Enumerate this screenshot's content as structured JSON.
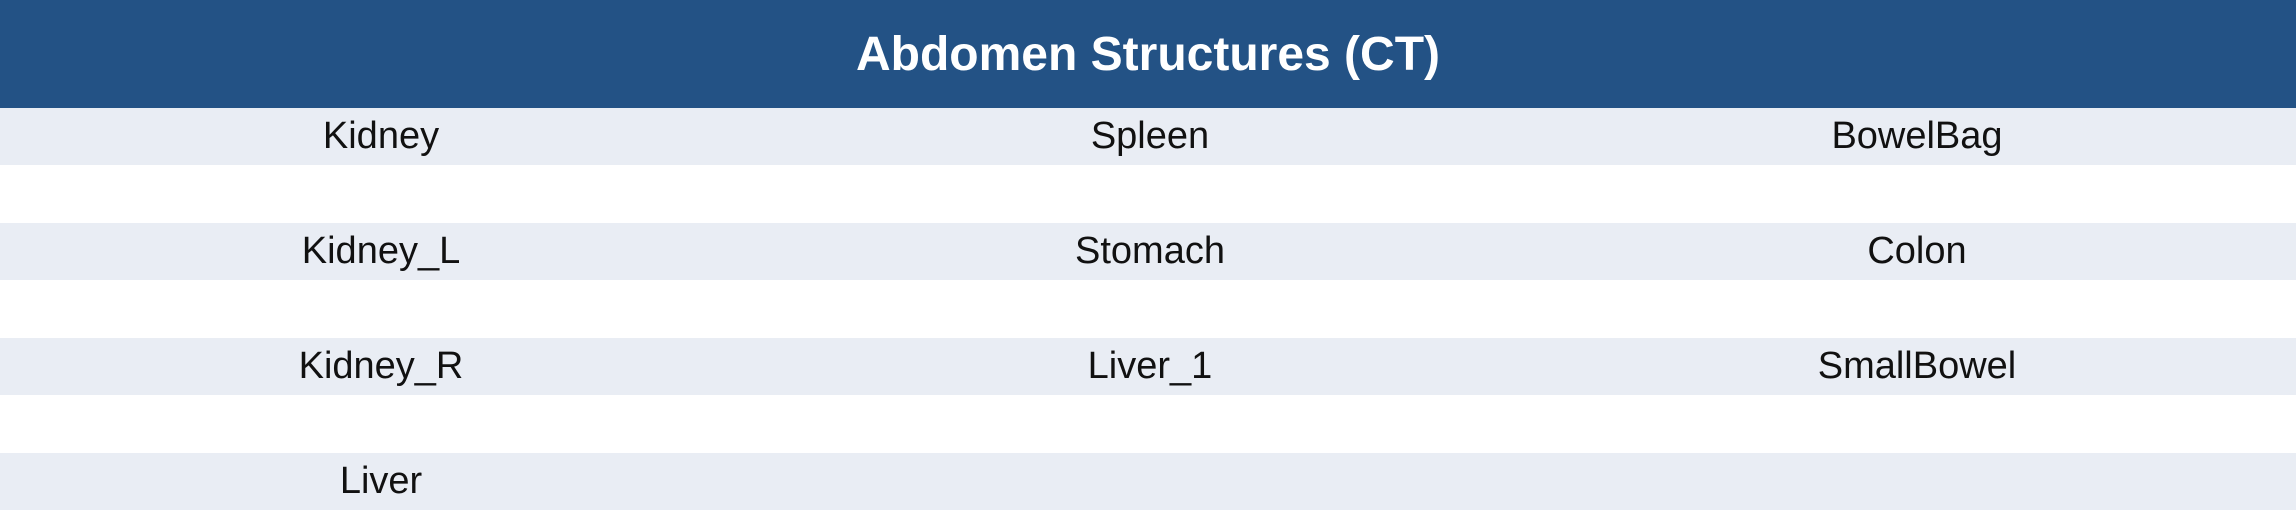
{
  "title": "Abdomen Structures (CT)",
  "rows": [
    [
      "Kidney",
      "Spleen",
      "BowelBag"
    ],
    [
      "Kidney_L",
      "Stomach",
      "Colon"
    ],
    [
      "Kidney_R",
      "Liver_1",
      "SmallBowel"
    ],
    [
      "Liver",
      "",
      ""
    ]
  ],
  "colors": {
    "header_bg": "#235285",
    "row_bg": "#e9edf4",
    "header_text": "#ffffff"
  }
}
